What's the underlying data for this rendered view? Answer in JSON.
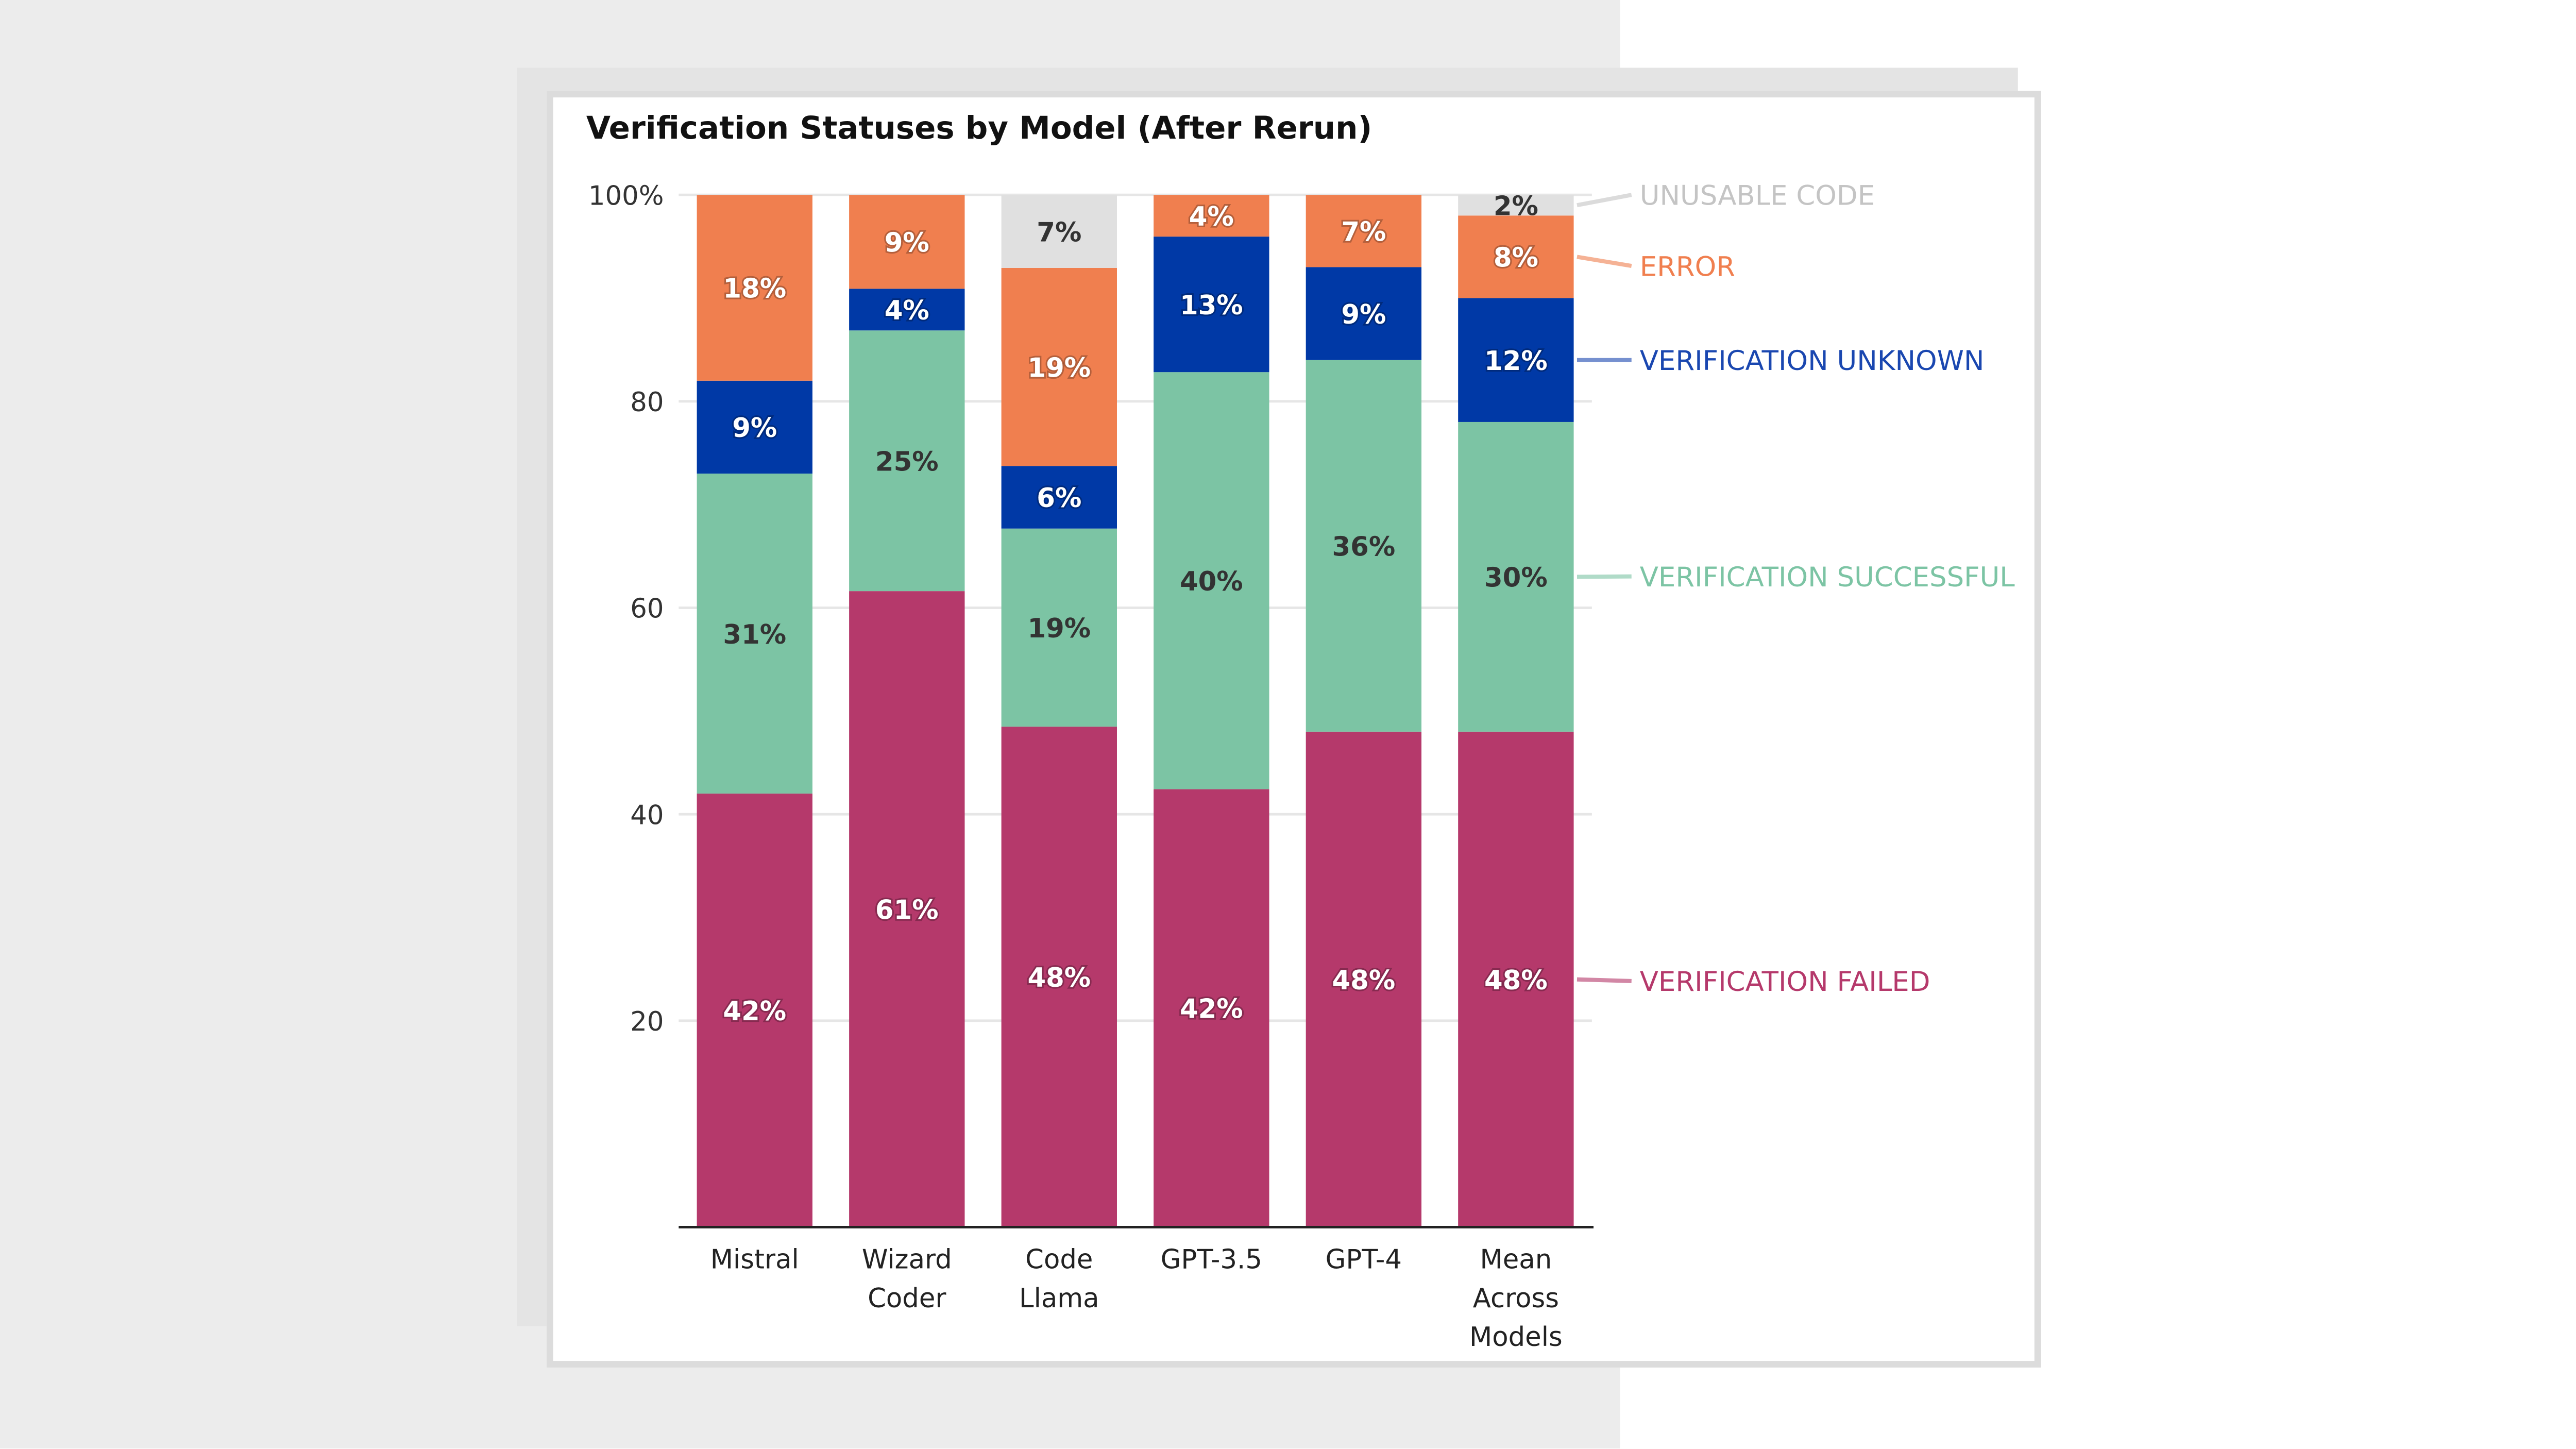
{
  "chart_data": {
    "type": "bar",
    "stacked": true,
    "title": "Verification Statuses by Model (After Rerun)",
    "categories": [
      [
        "Mistral"
      ],
      [
        "Wizard",
        "Coder"
      ],
      [
        "Code",
        "Llama"
      ],
      [
        "GPT-3.5"
      ],
      [
        "GPT-4"
      ],
      [
        "Mean",
        "Across",
        "Models"
      ]
    ],
    "ylim": [
      0,
      100
    ],
    "yticks": [
      {
        "value": 100,
        "label": "100%"
      },
      {
        "value": 80,
        "label": "80"
      },
      {
        "value": 60,
        "label": "60"
      },
      {
        "value": 40,
        "label": "40"
      },
      {
        "value": 20,
        "label": "20"
      }
    ],
    "grid": true,
    "legend": "right, direct labels",
    "series": [
      {
        "name": "VERIFICATION FAILED",
        "color": "#b5396b",
        "text_color": "#b5396b",
        "label_color": "#ffffff",
        "values": [
          42,
          61,
          48,
          42,
          48,
          48
        ]
      },
      {
        "name": "VERIFICATION SUCCESSFUL",
        "color": "#7cc4a4",
        "text_color": "#7cc4a4",
        "label_color": "#333333",
        "values": [
          31,
          25,
          19,
          40,
          36,
          30
        ]
      },
      {
        "name": "VERIFICATION UNKNOWN",
        "color": "#0039a6",
        "text_color": "#1a47b0",
        "label_color": "#ffffff",
        "values": [
          9,
          4,
          6,
          13,
          9,
          12
        ]
      },
      {
        "name": "ERROR",
        "color": "#f07f4f",
        "text_color": "#f07f4f",
        "label_color": "#ffffff",
        "values": [
          18,
          9,
          19,
          4,
          7,
          8
        ]
      },
      {
        "name": "UNUSABLE CODE",
        "color": "#e0e0e0",
        "text_color": "#c4c4c4",
        "label_color": "#333333",
        "values": [
          0,
          0,
          7,
          0,
          0,
          2
        ]
      }
    ]
  }
}
